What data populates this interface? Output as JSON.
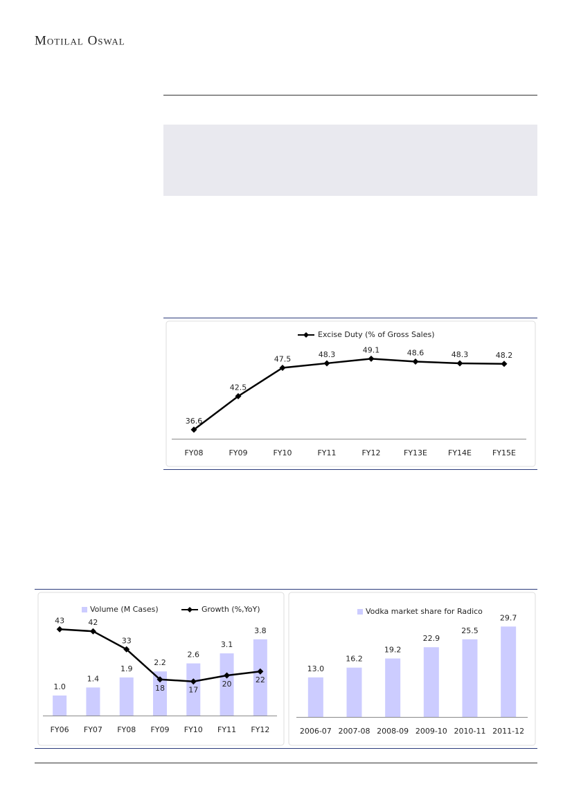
{
  "header": {
    "brand": "Motilal Oswal"
  },
  "chart_data": [
    {
      "type": "line",
      "categories": [
        "FY08",
        "FY09",
        "FY10",
        "FY11",
        "FY12",
        "FY13E",
        "FY14E",
        "FY15E"
      ],
      "series": [
        {
          "name": "Excise Duty (% of Gross Sales)",
          "color": "#000000",
          "values": [
            36.6,
            42.5,
            47.5,
            48.3,
            49.1,
            48.6,
            48.3,
            48.2
          ]
        }
      ],
      "ylim": [
        35,
        55
      ]
    },
    {
      "type": "bar-line",
      "categories": [
        "FY06",
        "FY07",
        "FY08",
        "FY09",
        "FY10",
        "FY11",
        "FY12"
      ],
      "series": [
        {
          "name": "Volume (M Cases)",
          "color": "#ccccff",
          "values": [
            1.0,
            1.4,
            1.9,
            2.2,
            2.6,
            3.1,
            3.8
          ],
          "value_labels": [
            "1.0",
            "1.4",
            "1.9",
            "2.2",
            "2.6",
            "3.1",
            "3.8"
          ]
        },
        {
          "name": "Growth (%,YoY)",
          "color": "#000000",
          "axis": "y2",
          "values": [
            43,
            42,
            33,
            18,
            17,
            20,
            22
          ]
        }
      ],
      "ylim": [
        0,
        6
      ],
      "y2lim": [
        0,
        60
      ]
    },
    {
      "type": "bar",
      "categories": [
        "2006-07",
        "2007-08",
        "2008-09",
        "2009-10",
        "2010-11",
        "2011-12"
      ],
      "series": [
        {
          "name": "Vodka market share for Radico",
          "color": "#ccccff",
          "values": [
            13.0,
            16.2,
            19.2,
            22.9,
            25.5,
            29.7
          ],
          "value_labels": [
            "13.0",
            "16.2",
            "19.2",
            "22.9",
            "25.5",
            "29.7"
          ]
        }
      ],
      "ylim": [
        0,
        40
      ]
    }
  ]
}
